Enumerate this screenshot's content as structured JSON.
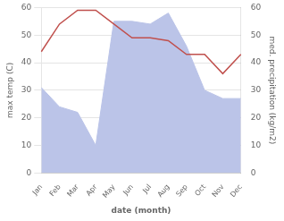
{
  "chart_data": {
    "type": "line",
    "xlabel": "date (month)",
    "ylabel": "max temp (C)",
    "y2label": "med. precipitation (kg/m2)",
    "categories": [
      "Jan",
      "Feb",
      "Mar",
      "Apr",
      "May",
      "Jun",
      "Jul",
      "Aug",
      "Sep",
      "Oct",
      "Nov",
      "Dec"
    ],
    "series": [
      {
        "type": "area",
        "axis": "y2",
        "color": "#bbc4e8",
        "values": [
          31,
          24,
          22,
          10,
          55,
          55,
          54,
          58,
          46,
          30,
          27,
          27
        ]
      },
      {
        "type": "line",
        "color": "#c0504d",
        "values": [
          44,
          54,
          59,
          59,
          54,
          49,
          49,
          48,
          43,
          43,
          36,
          43
        ]
      }
    ],
    "ylim": [
      0,
      60
    ],
    "yticks": [
      0,
      10,
      20,
      30,
      40,
      50,
      60
    ],
    "y2lim": [
      0,
      60
    ],
    "y2ticks": [
      0,
      10,
      20,
      30,
      40,
      50,
      60
    ],
    "grid": true
  }
}
